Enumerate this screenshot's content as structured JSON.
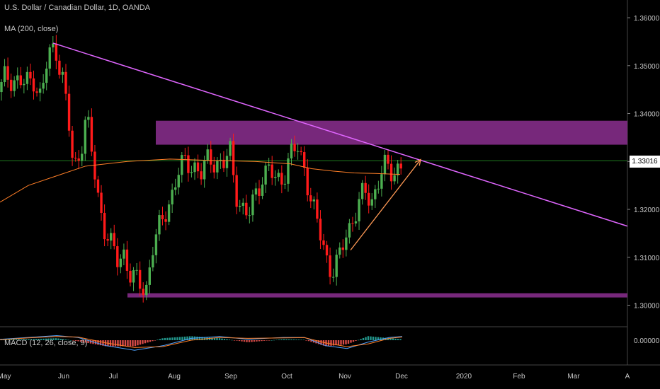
{
  "header": {
    "title": "U.S. Dollar / Canadian Dollar, 1D, OANDA",
    "indicator": "MA (200, close)",
    "macd_label": "MACD (12, 26, close, 9)"
  },
  "price_tag": "1.33016",
  "colors": {
    "up": "#4caf50",
    "down": "#ff1a1a",
    "ma": "#ff7f27",
    "trend": "#e066ff",
    "zone": "#7d2a82",
    "arrow": "#ff9955",
    "macd_line": "#4fa3ff",
    "signal_line": "#ff7f27",
    "grid_price": "#1f7a1f"
  },
  "chart_data": {
    "type": "candlestick",
    "title": "U.S. Dollar / Canadian Dollar, 1D, OANDA",
    "y_axis": {
      "ticks": [
        "1.36000",
        "1.35000",
        "1.34000",
        "1.33000",
        "1.32000",
        "1.31000",
        "1.30000"
      ],
      "range": [
        1.2955,
        1.3637
      ]
    },
    "x_axis": {
      "ticks": [
        "May",
        "Jun",
        "Jul",
        "Aug",
        "Sep",
        "Oct",
        "Nov",
        "Dec",
        "2020",
        "Feb",
        "Mar",
        "A"
      ]
    },
    "macd_axis": {
      "ticks": [
        "0.00000"
      ]
    },
    "current_price": 1.33016,
    "price_path": [
      [
        0,
        1.3445
      ],
      [
        8,
        1.348
      ],
      [
        22,
        1.347
      ],
      [
        35,
        1.346
      ],
      [
        48,
        1.3475
      ],
      [
        58,
        1.343
      ],
      [
        68,
        1.352
      ],
      [
        78,
        1.354
      ],
      [
        88,
        1.348
      ],
      [
        96,
        1.339
      ],
      [
        104,
        1.328
      ],
      [
        113,
        1.332
      ],
      [
        122,
        1.34
      ],
      [
        130,
        1.331
      ],
      [
        138,
        1.323
      ],
      [
        146,
        1.317
      ],
      [
        158,
        1.312
      ],
      [
        166,
        1.309
      ],
      [
        175,
        1.311
      ],
      [
        185,
        1.306
      ],
      [
        195,
        1.3045
      ],
      [
        206,
        1.303
      ],
      [
        215,
        1.312
      ],
      [
        228,
        1.317
      ],
      [
        240,
        1.322
      ],
      [
        250,
        1.327
      ],
      [
        262,
        1.33
      ],
      [
        275,
        1.329
      ],
      [
        285,
        1.327
      ],
      [
        295,
        1.331
      ],
      [
        305,
        1.33
      ],
      [
        315,
        1.329
      ],
      [
        325,
        1.332
      ],
      [
        333,
        1.324
      ],
      [
        342,
        1.32
      ],
      [
        350,
        1.318
      ],
      [
        360,
        1.323
      ],
      [
        370,
        1.327
      ],
      [
        380,
        1.328
      ],
      [
        390,
        1.326
      ],
      [
        400,
        1.327
      ],
      [
        410,
        1.331
      ],
      [
        420,
        1.333
      ],
      [
        430,
        1.329
      ],
      [
        440,
        1.321
      ],
      [
        450,
        1.316
      ],
      [
        458,
        1.312
      ],
      [
        465,
        1.308
      ],
      [
        472,
        1.307
      ],
      [
        480,
        1.31
      ],
      [
        488,
        1.315
      ],
      [
        495,
        1.317
      ],
      [
        505,
        1.32
      ],
      [
        515,
        1.324
      ],
      [
        525,
        1.322
      ],
      [
        535,
        1.326
      ],
      [
        545,
        1.329
      ],
      [
        555,
        1.328
      ],
      [
        565,
        1.329
      ]
    ],
    "ma200_path": [
      [
        0,
        1.3215
      ],
      [
        40,
        1.325
      ],
      [
        80,
        1.327
      ],
      [
        120,
        1.329
      ],
      [
        180,
        1.33
      ],
      [
        240,
        1.3305
      ],
      [
        300,
        1.3302
      ],
      [
        360,
        1.33
      ],
      [
        410,
        1.3295
      ],
      [
        440,
        1.3285
      ],
      [
        470,
        1.328
      ],
      [
        500,
        1.3276
      ],
      [
        530,
        1.3275
      ],
      [
        565,
        1.3273
      ]
    ],
    "resistance_zone": {
      "y0": 1.3335,
      "y1": 1.3385,
      "x0": 220,
      "x1": 886
    },
    "support_zone": {
      "y0": 1.3017,
      "y1": 1.3025,
      "x0": 180,
      "x1": 886
    },
    "trendline": [
      [
        75,
        1.3547
      ],
      [
        886,
        1.3165
      ]
    ],
    "arrow": [
      [
        495,
        1.3115
      ],
      [
        594,
        1.3304
      ]
    ],
    "macd": [
      [
        0,
        0.001
      ],
      [
        40,
        0.003
      ],
      [
        80,
        0.005
      ],
      [
        110,
        0.003
      ],
      [
        150,
        -0.006
      ],
      [
        190,
        -0.011
      ],
      [
        230,
        -0.006
      ],
      [
        270,
        0.002
      ],
      [
        310,
        0.004
      ],
      [
        350,
        0.001
      ],
      [
        400,
        0.003
      ],
      [
        430,
        0.003
      ],
      [
        460,
        -0.006
      ],
      [
        490,
        -0.009
      ],
      [
        520,
        -0.002
      ],
      [
        550,
        0.003
      ],
      [
        568,
        0.004
      ]
    ],
    "signal": [
      [
        0,
        0.0005
      ],
      [
        40,
        0.0025
      ],
      [
        80,
        0.004
      ],
      [
        110,
        0.0035
      ],
      [
        150,
        -0.003
      ],
      [
        190,
        -0.008
      ],
      [
        230,
        -0.007
      ],
      [
        270,
        0.0
      ],
      [
        310,
        0.003
      ],
      [
        350,
        0.002
      ],
      [
        400,
        0.0025
      ],
      [
        430,
        0.0028
      ],
      [
        460,
        -0.003
      ],
      [
        490,
        -0.007
      ],
      [
        520,
        -0.004
      ],
      [
        550,
        0.002
      ],
      [
        568,
        0.0035
      ]
    ]
  }
}
